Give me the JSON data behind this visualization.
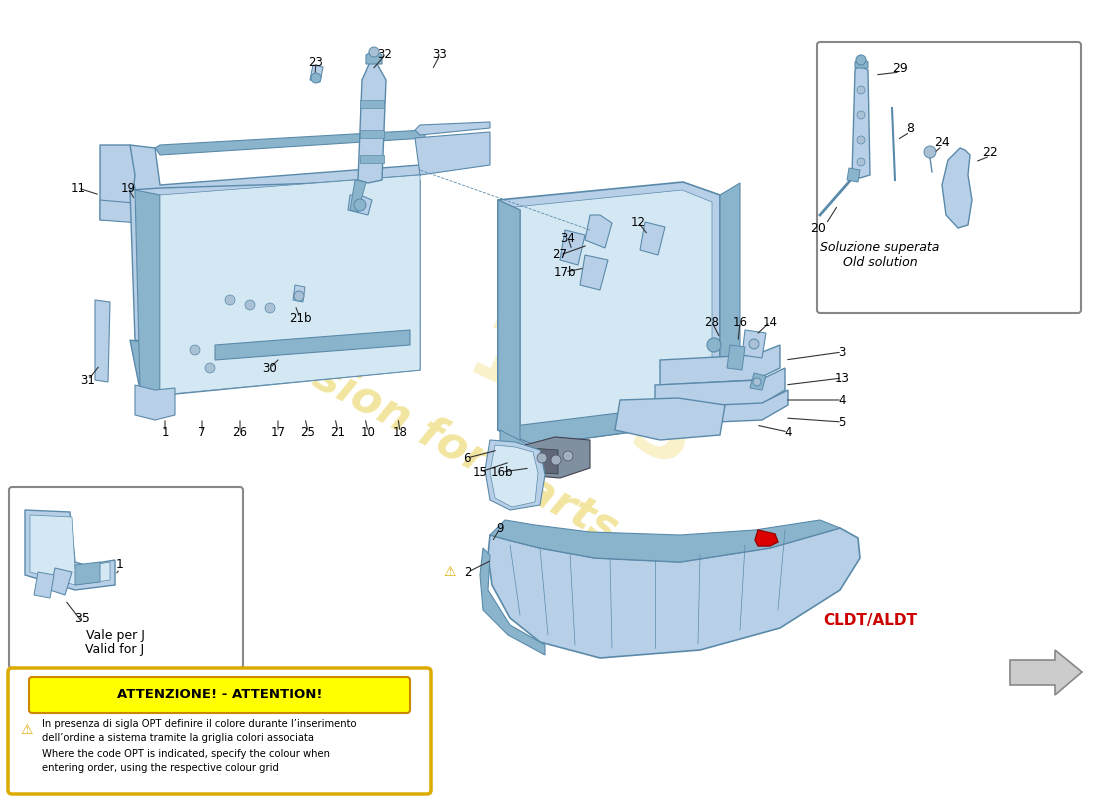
{
  "bg_color": "#ffffff",
  "part_color_light": "#b8cfe8",
  "part_color_mid": "#8ab4cc",
  "part_color_dark": "#5a8aaa",
  "part_color_very_light": "#d4e8f4",
  "red_accent": "#dd0000",
  "yellow_bg": "#ffff00",
  "yellow_border": "#ddaa00",
  "watermark_color": "#e8d050",
  "attention_title": "ATTENZIONE! - ATTENTION!",
  "attention_line1": "In presenza di sigla OPT definire il colore durante l’inserimento",
  "attention_line2": "dell’ordine a sistema tramite la griglia colori associata",
  "attention_line3": "Where the code OPT is indicated, specify the colour when",
  "attention_line4": "entering order, using the respective colour grid",
  "vale_per_j": "Vale per J",
  "valid_for_j": "Valid for J",
  "soluzione_text1": "Soluzione superata",
  "soluzione_text2": "Old solution",
  "cldt_label": "CLDT/ALDT",
  "cldt_color": "#cc0000"
}
